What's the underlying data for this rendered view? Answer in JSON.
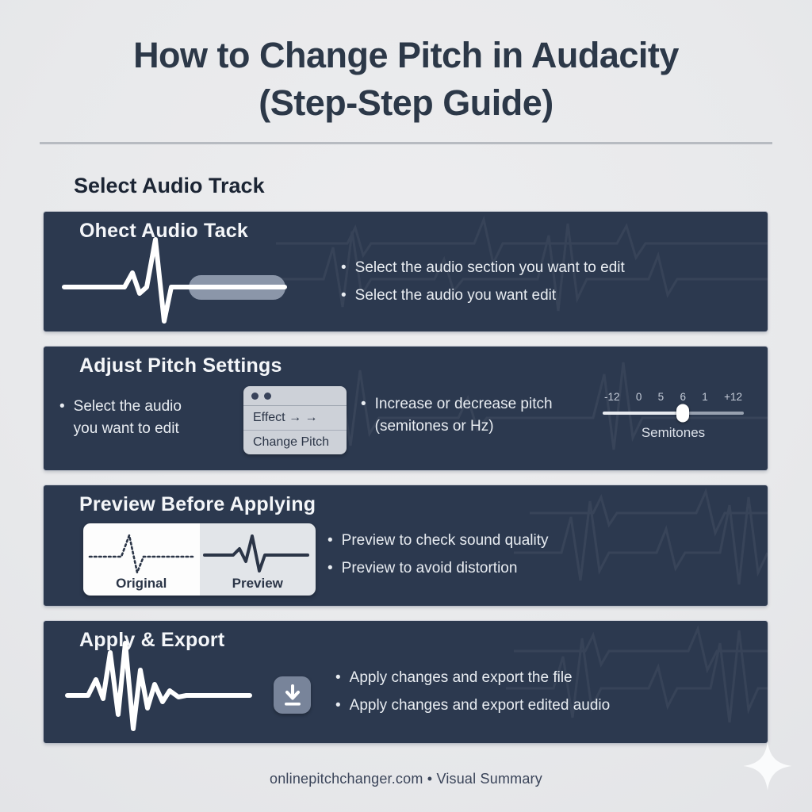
{
  "page": {
    "title_line1": "How to Change Pitch in Audacity",
    "title_line2": "(Step-Step Guide)",
    "section_heading": "Select Audio Track",
    "footer": "onlinepitchchanger.com • Visual Summary"
  },
  "colors": {
    "page_bg": "#e9eaec",
    "panel_bg": "#2c394f",
    "panel_title_text": "#f4f6f9",
    "bullet_text": "#e9edf2",
    "heading_text": "#1c2534",
    "selection_pill": "#8b96a9",
    "menu_bg": "#cdd1d8",
    "download_button": "#78849a",
    "slider_track_left": "#e7eaef",
    "slider_track_right": "#98a1b0"
  },
  "panels": [
    {
      "title": "Ohect Audio Tack",
      "icon": "waveform-with-selection",
      "bullets": [
        "Select the audio section you want to edit",
        "Select the audio you want edit"
      ]
    },
    {
      "title": "Adjust Pitch Settings",
      "left_bullet": {
        "line1": "Select the audio",
        "line2": "you want to edit"
      },
      "menu": {
        "row1": "Effect → →",
        "row2": "Change Pitch"
      },
      "bullet": {
        "line1": "Increase or decrease pitch",
        "line2": "(semitones or Hz)"
      },
      "slider": {
        "labels": [
          "-12",
          "0",
          "5",
          "6",
          "1",
          "+12"
        ],
        "caption": "Semitones",
        "thumb_pct": 57
      }
    },
    {
      "title": "Preview Before Applying",
      "compare": {
        "left_label": "Original",
        "right_label": "Preview"
      },
      "bullets": [
        "Preview to check sound quality",
        "Preview to avoid distortion"
      ]
    },
    {
      "title": "Apply & Export",
      "icon": "waveform-download",
      "bullets": [
        "Apply changes and export the file",
        "Apply changes and export edited audio"
      ]
    }
  ]
}
